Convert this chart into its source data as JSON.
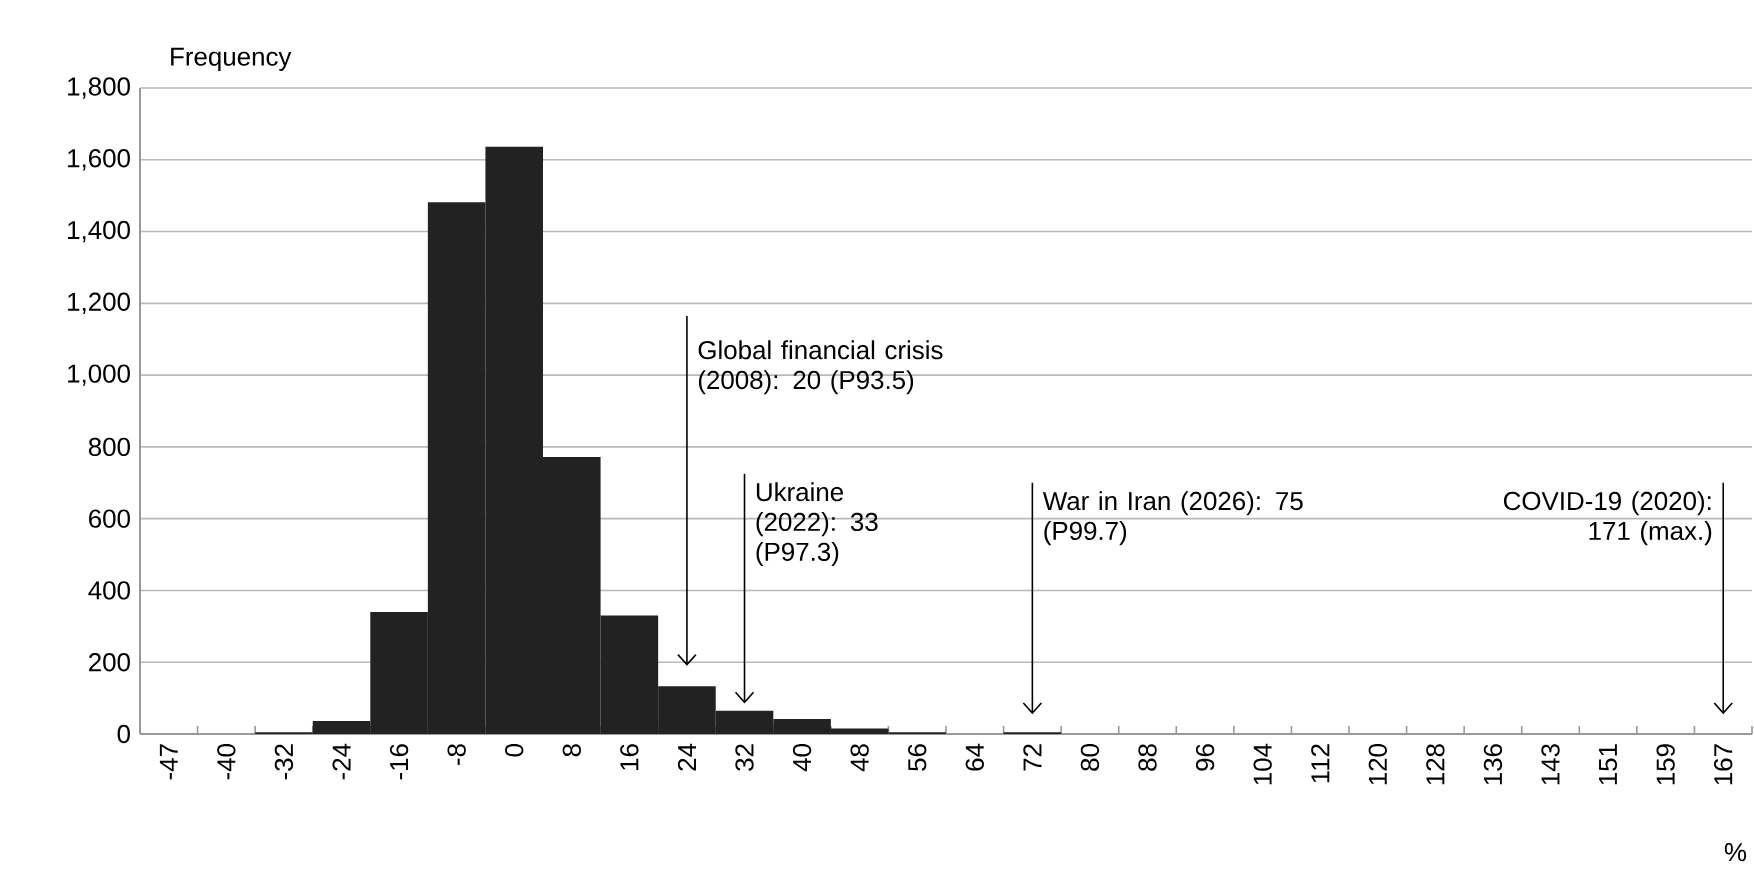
{
  "chart_data": {
    "type": "bar",
    "ylabel": "Frequency",
    "xlabel": "%",
    "categories": [
      "-47",
      "-40",
      "-32",
      "-24",
      "-16",
      "-8",
      "0",
      "8",
      "16",
      "24",
      "32",
      "40",
      "48",
      "56",
      "64",
      "72",
      "80",
      "88",
      "96",
      "104",
      "112",
      "120",
      "128",
      "136",
      "143",
      "151",
      "159",
      "167"
    ],
    "values": [
      0,
      0,
      5,
      36,
      340,
      1482,
      1636,
      772,
      330,
      133,
      65,
      42,
      15,
      5,
      0,
      5,
      0,
      0,
      0,
      0,
      0,
      0,
      0,
      0,
      0,
      0,
      0,
      0
    ],
    "color": "#222222",
    "ylim": [
      0,
      1800
    ],
    "yticks": [
      0,
      200,
      400,
      600,
      800,
      {
        "value": 1000,
        "label": "1,000"
      },
      {
        "value": 1200,
        "label": "1,200"
      },
      {
        "value": 1400,
        "label": "1,400"
      },
      {
        "value": 1600,
        "label": "1,600"
      },
      {
        "value": 1800,
        "label": "1,800"
      }
    ],
    "grid": "y",
    "annotations": [
      "Global financial crisis (2008): 20 (P93.5)",
      "Ukraine (2022): 33 (P97.3)",
      "War in Iran (2026): 75 (P99.7)",
      "COVID-19 (2020): 171 (max.)"
    ]
  }
}
